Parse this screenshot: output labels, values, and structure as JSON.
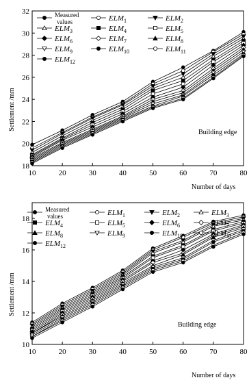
{
  "chart_data": [
    {
      "type": "line",
      "ylabel": "Settlement /mm",
      "xlabel": "Number of days",
      "annotation": "Building edge",
      "x": [
        10,
        20,
        30,
        40,
        50,
        60,
        70,
        80
      ],
      "xlim": [
        10,
        80
      ],
      "ylim": [
        18,
        32
      ],
      "xticks": [
        "10",
        "20",
        "30",
        "40",
        "50",
        "60",
        "70",
        "80"
      ],
      "yticks": [
        "18",
        "20",
        "22",
        "24",
        "26",
        "28",
        "30",
        "32"
      ],
      "grid": false,
      "legend_position": "top-left",
      "series": [
        {
          "name": "Measured values",
          "marker": "filled-circle",
          "values": [
            19.9,
            21.2,
            22.6,
            23.8,
            25.6,
            26.9,
            28.4,
            30.1
          ]
        },
        {
          "name": "ELM1",
          "marker": "open-circle",
          "values": [
            19.6,
            21.0,
            22.4,
            23.6,
            25.4,
            26.6,
            28.3,
            29.9
          ]
        },
        {
          "name": "ELM2",
          "marker": "filled-triangle-down",
          "values": [
            19.4,
            20.9,
            22.3,
            23.5,
            25.2,
            26.3,
            28.1,
            29.7
          ]
        },
        {
          "name": "ELM3",
          "marker": "open-triangle",
          "values": [
            19.2,
            20.7,
            22.1,
            23.3,
            25.0,
            26.0,
            27.9,
            29.5
          ]
        },
        {
          "name": "ELM4",
          "marker": "filled-square",
          "values": [
            19.0,
            20.5,
            21.9,
            23.1,
            24.8,
            25.7,
            27.6,
            29.3
          ]
        },
        {
          "name": "ELM5",
          "marker": "open-square",
          "values": [
            18.9,
            20.4,
            21.7,
            22.9,
            24.5,
            25.4,
            27.4,
            29.1
          ]
        },
        {
          "name": "ELM6",
          "marker": "filled-diamond",
          "values": [
            18.8,
            20.3,
            21.5,
            22.7,
            24.2,
            25.1,
            27.1,
            28.9
          ]
        },
        {
          "name": "ELM7",
          "marker": "open-diamond",
          "values": [
            18.7,
            20.1,
            21.3,
            22.5,
            24.0,
            24.8,
            26.8,
            28.7
          ]
        },
        {
          "name": "ELM8",
          "marker": "filled-triangle",
          "values": [
            18.6,
            20.0,
            21.2,
            22.4,
            23.8,
            24.6,
            26.6,
            28.5
          ]
        },
        {
          "name": "ELM9",
          "marker": "open-triangle-down",
          "values": [
            18.5,
            19.9,
            21.1,
            22.3,
            23.6,
            24.4,
            26.4,
            28.3
          ]
        },
        {
          "name": "ELM10",
          "marker": "filled-circle",
          "values": [
            18.4,
            19.8,
            21.0,
            22.2,
            23.4,
            24.3,
            26.2,
            28.1
          ]
        },
        {
          "name": "ELM11",
          "marker": "open-circle",
          "values": [
            18.3,
            19.7,
            20.9,
            22.1,
            23.3,
            24.1,
            26.0,
            28.0
          ]
        },
        {
          "name": "ELM12",
          "marker": "filled-circle",
          "values": [
            18.2,
            19.6,
            20.8,
            22.0,
            23.2,
            24.0,
            25.9,
            27.9
          ]
        }
      ]
    },
    {
      "type": "line",
      "ylabel": "Settlement /mm",
      "xlabel": "Number of days",
      "annotation": "Building edge",
      "x": [
        10,
        20,
        30,
        40,
        50,
        60,
        70,
        80
      ],
      "xlim": [
        10,
        80
      ],
      "ylim": [
        10,
        19
      ],
      "xticks": [
        "10",
        "20",
        "30",
        "40",
        "50",
        "60",
        "70",
        "80"
      ],
      "yticks": [
        "10",
        "12",
        "14",
        "16",
        "18"
      ],
      "grid": false,
      "legend_position": "top-left",
      "series": [
        {
          "name": "Measured values",
          "marker": "filled-circle",
          "values": [
            11.4,
            12.6,
            13.6,
            14.7,
            16.1,
            16.9,
            17.8,
            18.2
          ]
        },
        {
          "name": "ELM1",
          "marker": "open-circle",
          "values": [
            11.3,
            12.5,
            13.5,
            14.6,
            16.0,
            16.8,
            17.7,
            18.1
          ]
        },
        {
          "name": "ELM2",
          "marker": "filled-triangle-down",
          "values": [
            11.2,
            12.4,
            13.4,
            14.5,
            15.9,
            16.6,
            17.6,
            18.0
          ]
        },
        {
          "name": "ELM3",
          "marker": "open-triangle",
          "values": [
            11.1,
            12.3,
            13.3,
            14.4,
            15.8,
            16.5,
            17.5,
            17.9
          ]
        },
        {
          "name": "ELM4",
          "marker": "filled-square",
          "values": [
            11.0,
            12.2,
            13.2,
            14.3,
            15.6,
            16.3,
            17.3,
            17.8
          ]
        },
        {
          "name": "ELM5",
          "marker": "open-square",
          "values": [
            10.9,
            12.1,
            13.1,
            14.2,
            15.5,
            16.2,
            17.2,
            17.7
          ]
        },
        {
          "name": "ELM6",
          "marker": "filled-diamond",
          "values": [
            10.8,
            12.0,
            13.0,
            14.1,
            15.3,
            16.0,
            17.0,
            17.6
          ]
        },
        {
          "name": "ELM7",
          "marker": "open-diamond",
          "values": [
            10.7,
            11.9,
            12.9,
            14.0,
            15.2,
            15.8,
            16.9,
            17.5
          ]
        },
        {
          "name": "ELM8",
          "marker": "filled-triangle",
          "values": [
            10.7,
            11.8,
            12.8,
            13.9,
            15.0,
            15.7,
            16.8,
            17.4
          ]
        },
        {
          "name": "ELM9",
          "marker": "open-triangle-down",
          "values": [
            10.6,
            11.7,
            12.7,
            13.8,
            14.9,
            15.5,
            16.6,
            17.3
          ]
        },
        {
          "name": "ELM10",
          "marker": "filled-circle",
          "values": [
            10.5,
            11.6,
            12.6,
            13.7,
            14.8,
            15.4,
            16.5,
            17.2
          ]
        },
        {
          "name": "ELM11",
          "marker": "open-circle",
          "values": [
            10.5,
            11.5,
            12.5,
            13.6,
            14.7,
            15.3,
            16.3,
            17.1
          ]
        },
        {
          "name": "ELM12",
          "marker": "filled-circle",
          "values": [
            10.4,
            11.4,
            12.4,
            13.5,
            14.6,
            15.2,
            16.2,
            17.0
          ]
        }
      ]
    }
  ]
}
